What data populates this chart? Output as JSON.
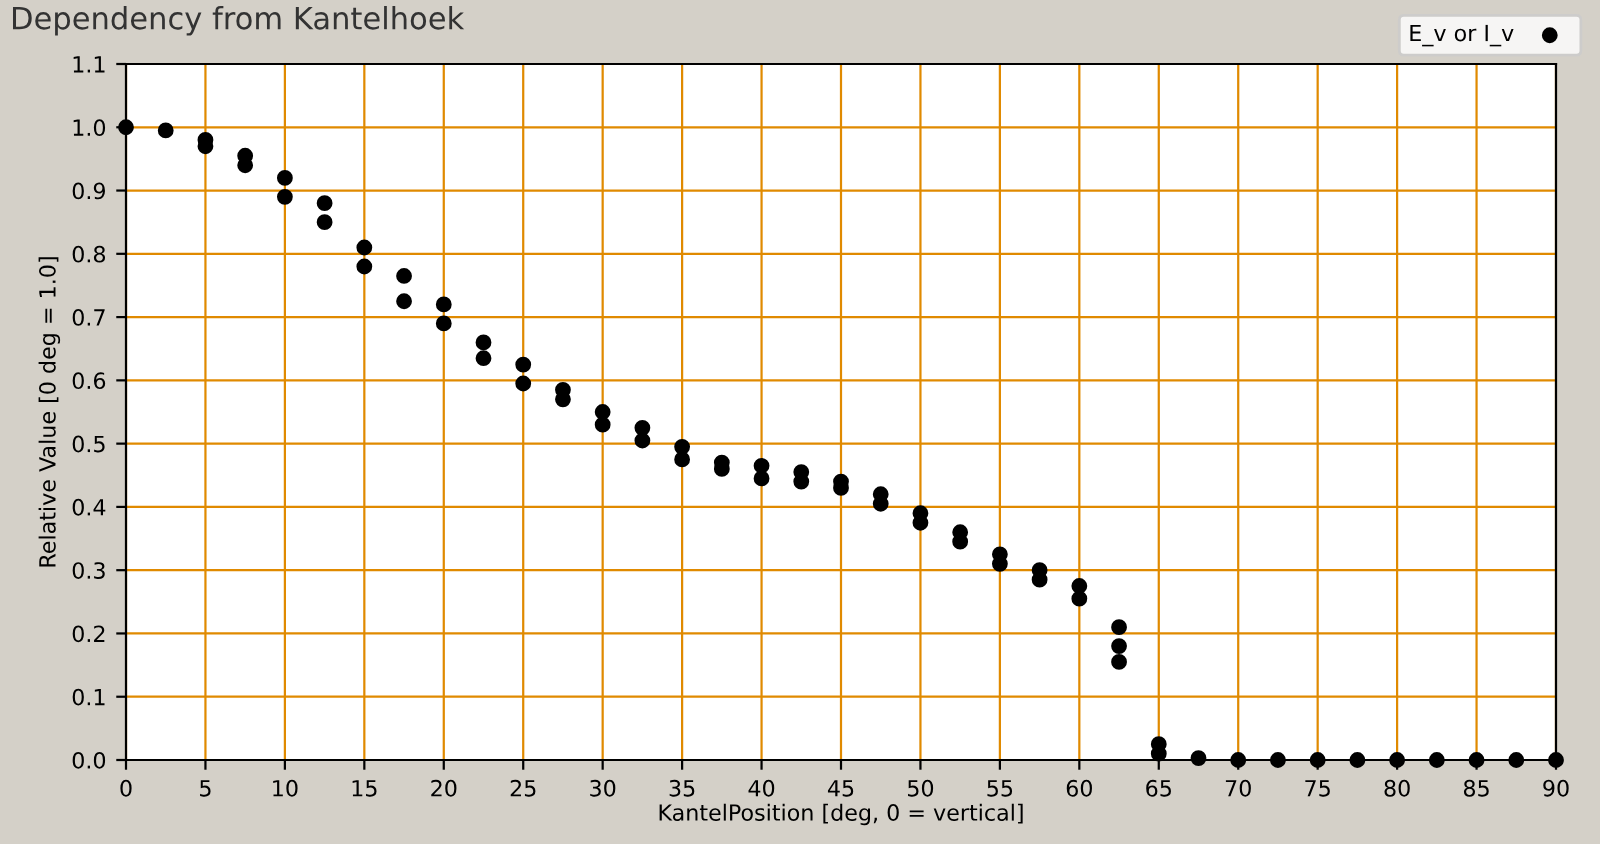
{
  "chart_data": {
    "type": "scatter",
    "title": "Dependency from Kantelhoek",
    "xlabel": "KantelPosition [deg, 0 = vertical]",
    "ylabel": "Relative Value [0 deg = 1.0]",
    "series": [
      {
        "name": "E_v or I_v",
        "color": "#000000",
        "x": [
          0,
          2.5,
          5,
          5,
          7.5,
          7.5,
          10,
          10,
          12.5,
          12.5,
          15,
          15,
          17.5,
          17.5,
          20,
          20,
          22.5,
          22.5,
          25,
          25,
          27.5,
          27.5,
          30,
          30,
          32.5,
          32.5,
          35,
          35,
          37.5,
          37.5,
          40,
          40,
          42.5,
          42.5,
          45,
          45,
          47.5,
          47.5,
          50,
          50,
          52.5,
          52.5,
          55,
          55,
          57.5,
          57.5,
          60,
          60,
          62.5,
          62.5,
          62.5,
          65,
          65,
          67.5,
          70,
          72.5,
          75,
          77.5,
          80,
          82.5,
          85,
          87.5,
          90
        ],
        "values": [
          1.0,
          0.995,
          0.97,
          0.98,
          0.94,
          0.955,
          0.89,
          0.92,
          0.85,
          0.88,
          0.78,
          0.81,
          0.725,
          0.765,
          0.69,
          0.72,
          0.635,
          0.66,
          0.595,
          0.625,
          0.57,
          0.585,
          0.53,
          0.55,
          0.505,
          0.525,
          0.475,
          0.495,
          0.46,
          0.47,
          0.445,
          0.465,
          0.44,
          0.455,
          0.43,
          0.44,
          0.405,
          0.42,
          0.375,
          0.39,
          0.345,
          0.36,
          0.31,
          0.325,
          0.285,
          0.3,
          0.255,
          0.275,
          0.155,
          0.18,
          0.21,
          0.01,
          0.025,
          0.003,
          0,
          0,
          0,
          0,
          0,
          0,
          0,
          0,
          0
        ]
      }
    ],
    "xlim": [
      0,
      90
    ],
    "xticks": [
      0,
      5,
      10,
      15,
      20,
      25,
      30,
      35,
      40,
      45,
      50,
      55,
      60,
      65,
      70,
      75,
      80,
      85,
      90
    ],
    "ylim": [
      0,
      1.1
    ],
    "yticks": [
      {
        "value": 0,
        "label": "0.0"
      },
      {
        "value": 0.1,
        "label": "0.1"
      },
      {
        "value": 0.2,
        "label": "0.2"
      },
      {
        "value": 0.3,
        "label": "0.3"
      },
      {
        "value": 0.4,
        "label": "0.4"
      },
      {
        "value": 0.5,
        "label": "0.5"
      },
      {
        "value": 0.6,
        "label": "0.6"
      },
      {
        "value": 0.7,
        "label": "0.7"
      },
      {
        "value": 0.8,
        "label": "0.8"
      },
      {
        "value": 0.9,
        "label": "0.9"
      },
      {
        "value": 1.0,
        "label": "1.0"
      },
      {
        "value": 1.1,
        "label": "1.1"
      }
    ],
    "grid": true,
    "legend": "top right",
    "marker": "circle"
  }
}
